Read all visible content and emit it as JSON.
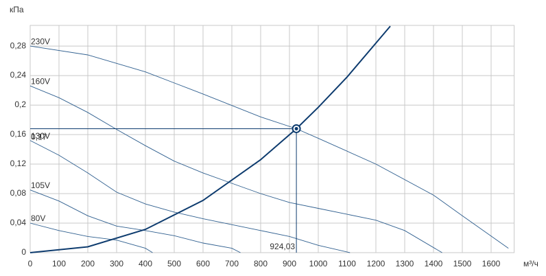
{
  "chart_data": {
    "type": "line",
    "y_label": "кПа",
    "x_label": "м³/ч",
    "xlim": [
      0,
      1680
    ],
    "ylim": [
      0,
      0.308
    ],
    "xticks": [
      0,
      100,
      200,
      300,
      400,
      500,
      600,
      700,
      800,
      900,
      1000,
      1100,
      1200,
      1300,
      1400,
      1500,
      1600
    ],
    "yticks": [
      0,
      {
        "value": 0.04,
        "label": "0,04"
      },
      {
        "value": 0.08,
        "label": "0,08"
      },
      {
        "value": 0.12,
        "label": "0,12"
      },
      {
        "value": 0.16,
        "label": "0,16"
      },
      {
        "value": 0.2,
        "label": "0,2"
      },
      {
        "value": 0.24,
        "label": "0,24"
      },
      {
        "value": 0.28,
        "label": "0,28"
      }
    ],
    "grid": true,
    "series": [
      {
        "name": "230V",
        "color": "#2f5f8f",
        "x": [
          0,
          200,
          400,
          600,
          800,
          924,
          1000,
          1200,
          1400,
          1500,
          1660
        ],
        "values": [
          0.28,
          0.268,
          0.245,
          0.215,
          0.184,
          0.168,
          0.155,
          0.12,
          0.078,
          0.05,
          0.006
        ]
      },
      {
        "name": "160V",
        "color": "#2f5f8f",
        "x": [
          0,
          100,
          200,
          300,
          400,
          500,
          600,
          700,
          800,
          900,
          1000,
          1100,
          1200,
          1300,
          1430
        ],
        "values": [
          0.226,
          0.21,
          0.19,
          0.167,
          0.145,
          0.124,
          0.108,
          0.094,
          0.08,
          0.068,
          0.06,
          0.052,
          0.044,
          0.03,
          0
        ]
      },
      {
        "name": "130V",
        "color": "#2f5f8f",
        "x": [
          0,
          100,
          200,
          300,
          400,
          500,
          600,
          700,
          800,
          900,
          1000,
          1110
        ],
        "values": [
          0.152,
          0.132,
          0.108,
          0.082,
          0.066,
          0.055,
          0.046,
          0.038,
          0.03,
          0.022,
          0.01,
          0
        ]
      },
      {
        "name": "105V",
        "color": "#2f5f8f",
        "x": [
          0,
          100,
          200,
          300,
          400,
          500,
          600,
          700,
          730
        ],
        "values": [
          0.085,
          0.07,
          0.05,
          0.036,
          0.03,
          0.023,
          0.013,
          0.006,
          0
        ]
      },
      {
        "name": "80V",
        "color": "#2f5f8f",
        "x": [
          0,
          100,
          200,
          300,
          400,
          425
        ],
        "values": [
          0.04,
          0.03,
          0.022,
          0.017,
          0.006,
          0
        ]
      }
    ],
    "system_curve": {
      "color": "#0d3b6e",
      "x": [
        0,
        200,
        400,
        600,
        800,
        924,
        1000,
        1100,
        1250
      ],
      "values": [
        0,
        0.0079,
        0.0315,
        0.0708,
        0.126,
        0.168,
        0.197,
        0.238,
        0.307
      ]
    },
    "operating_point": {
      "x": 924.03,
      "y": 0.168,
      "x_label": "924,03",
      "y_label": "0,17"
    }
  }
}
